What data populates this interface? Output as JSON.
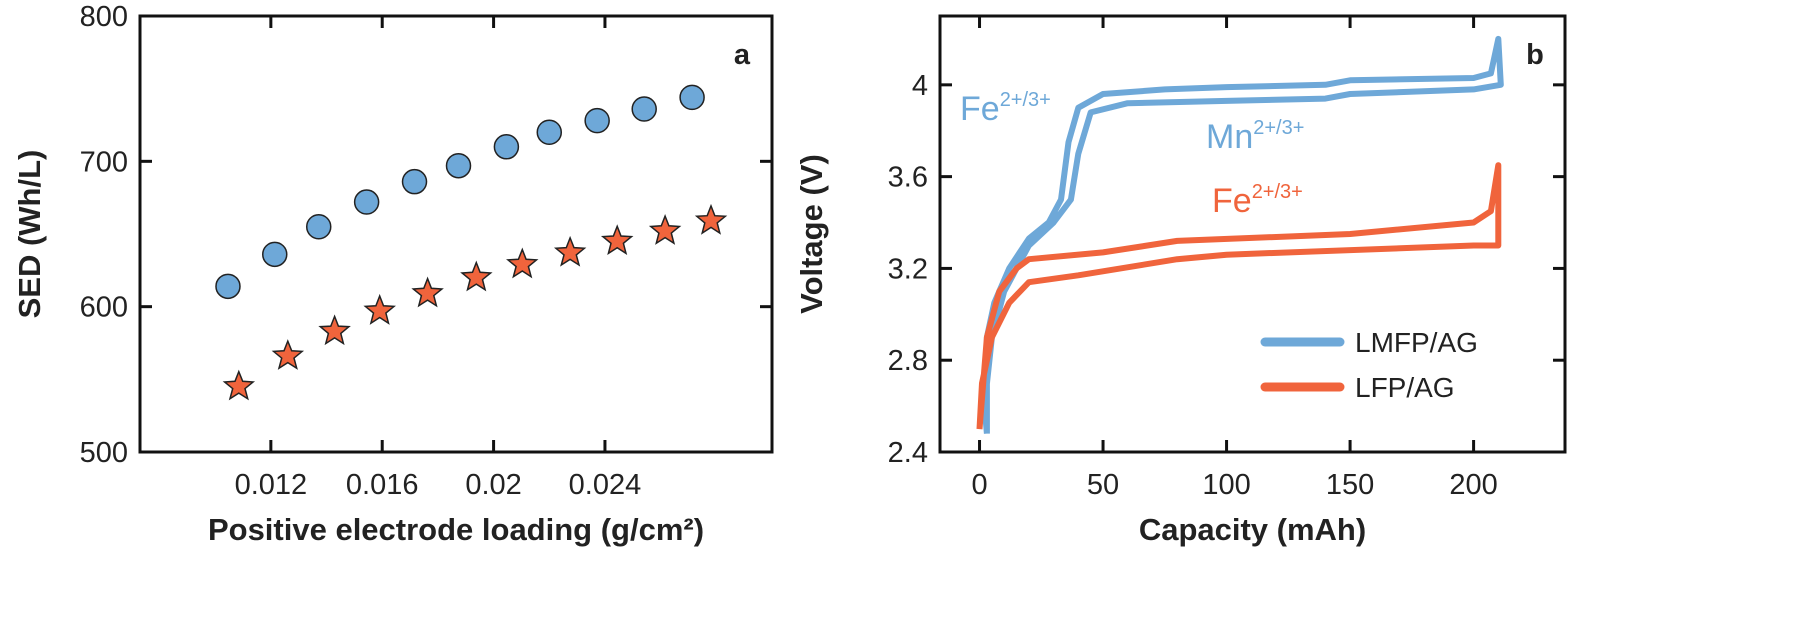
{
  "chart_data": [
    {
      "type": "scatter",
      "panel_label": "a",
      "xlabel": "Positive electrode loading (g/cm²)",
      "ylabel": "SED (Wh/L)",
      "xlim": [
        0.0073,
        0.03
      ],
      "ylim": [
        500,
        800
      ],
      "xticks": [
        0.012,
        0.016,
        0.02,
        0.024
      ],
      "yticks": [
        500,
        600,
        700,
        800
      ],
      "series": [
        {
          "color": "#6ea8d8",
          "marker": "circle",
          "x": [
            0.01046,
            0.01214,
            0.01372,
            0.01544,
            0.01716,
            0.01874,
            0.02046,
            0.022,
            0.02372,
            0.02541,
            0.02713
          ],
          "values": [
            614,
            636,
            655,
            672,
            686,
            697,
            710,
            720,
            728,
            736,
            744
          ]
        },
        {
          "color": "#f0643c",
          "marker": "star",
          "x": [
            0.01085,
            0.01261,
            0.01429,
            0.01591,
            0.01763,
            0.01938,
            0.02103,
            0.02275,
            0.02444,
            0.02616,
            0.02781
          ],
          "values": [
            545,
            566,
            583,
            597,
            609,
            620,
            629,
            637,
            645,
            652,
            659
          ]
        }
      ]
    },
    {
      "type": "line",
      "panel_label": "b",
      "xlabel": "Capacity (mAh)",
      "ylabel": "Voltage (V)",
      "xlim": [
        -16,
        237
      ],
      "ylim": [
        2.4,
        4.3
      ],
      "xticks": [
        0,
        50,
        100,
        150,
        200
      ],
      "yticks": [
        2.4,
        2.8,
        3.2,
        3.6,
        4
      ],
      "legend": "lower right",
      "series": [
        {
          "name": "LMFP/AG",
          "color": "#6ea8d8",
          "x": [
            3,
            3,
            6,
            12,
            20,
            28,
            33,
            36,
            40,
            50,
            75,
            100,
            140,
            150,
            200,
            207,
            210,
            211,
            200,
            150,
            140,
            100,
            60,
            45,
            40,
            37,
            30,
            20,
            10,
            5,
            2,
            3
          ],
          "values": [
            2.48,
            2.9,
            3.05,
            3.2,
            3.33,
            3.4,
            3.5,
            3.75,
            3.9,
            3.96,
            3.98,
            3.99,
            4.0,
            4.02,
            4.03,
            4.05,
            4.2,
            4.0,
            3.98,
            3.96,
            3.94,
            3.93,
            3.92,
            3.88,
            3.7,
            3.5,
            3.4,
            3.3,
            3.1,
            2.9,
            2.6,
            2.48
          ]
        },
        {
          "name": "LFP/AG",
          "color": "#f0643c",
          "x": [
            0,
            3,
            8,
            15,
            20,
            50,
            80,
            150,
            200,
            207,
            210,
            210,
            200,
            100,
            80,
            40,
            20,
            12,
            5,
            1,
            0
          ],
          "values": [
            2.5,
            2.9,
            3.1,
            3.2,
            3.24,
            3.27,
            3.32,
            3.35,
            3.4,
            3.45,
            3.65,
            3.3,
            3.3,
            3.26,
            3.24,
            3.17,
            3.14,
            3.05,
            2.9,
            2.7,
            2.5
          ]
        }
      ],
      "annotations": [
        {
          "text": "Fe",
          "sup": "2+/3+",
          "color": "#6ea8d8"
        },
        {
          "text": "Mn",
          "sup": "2+/3+",
          "color": "#6ea8d8"
        },
        {
          "text": "Fe",
          "sup": "2+/3+",
          "color": "#f0643c"
        }
      ]
    }
  ]
}
